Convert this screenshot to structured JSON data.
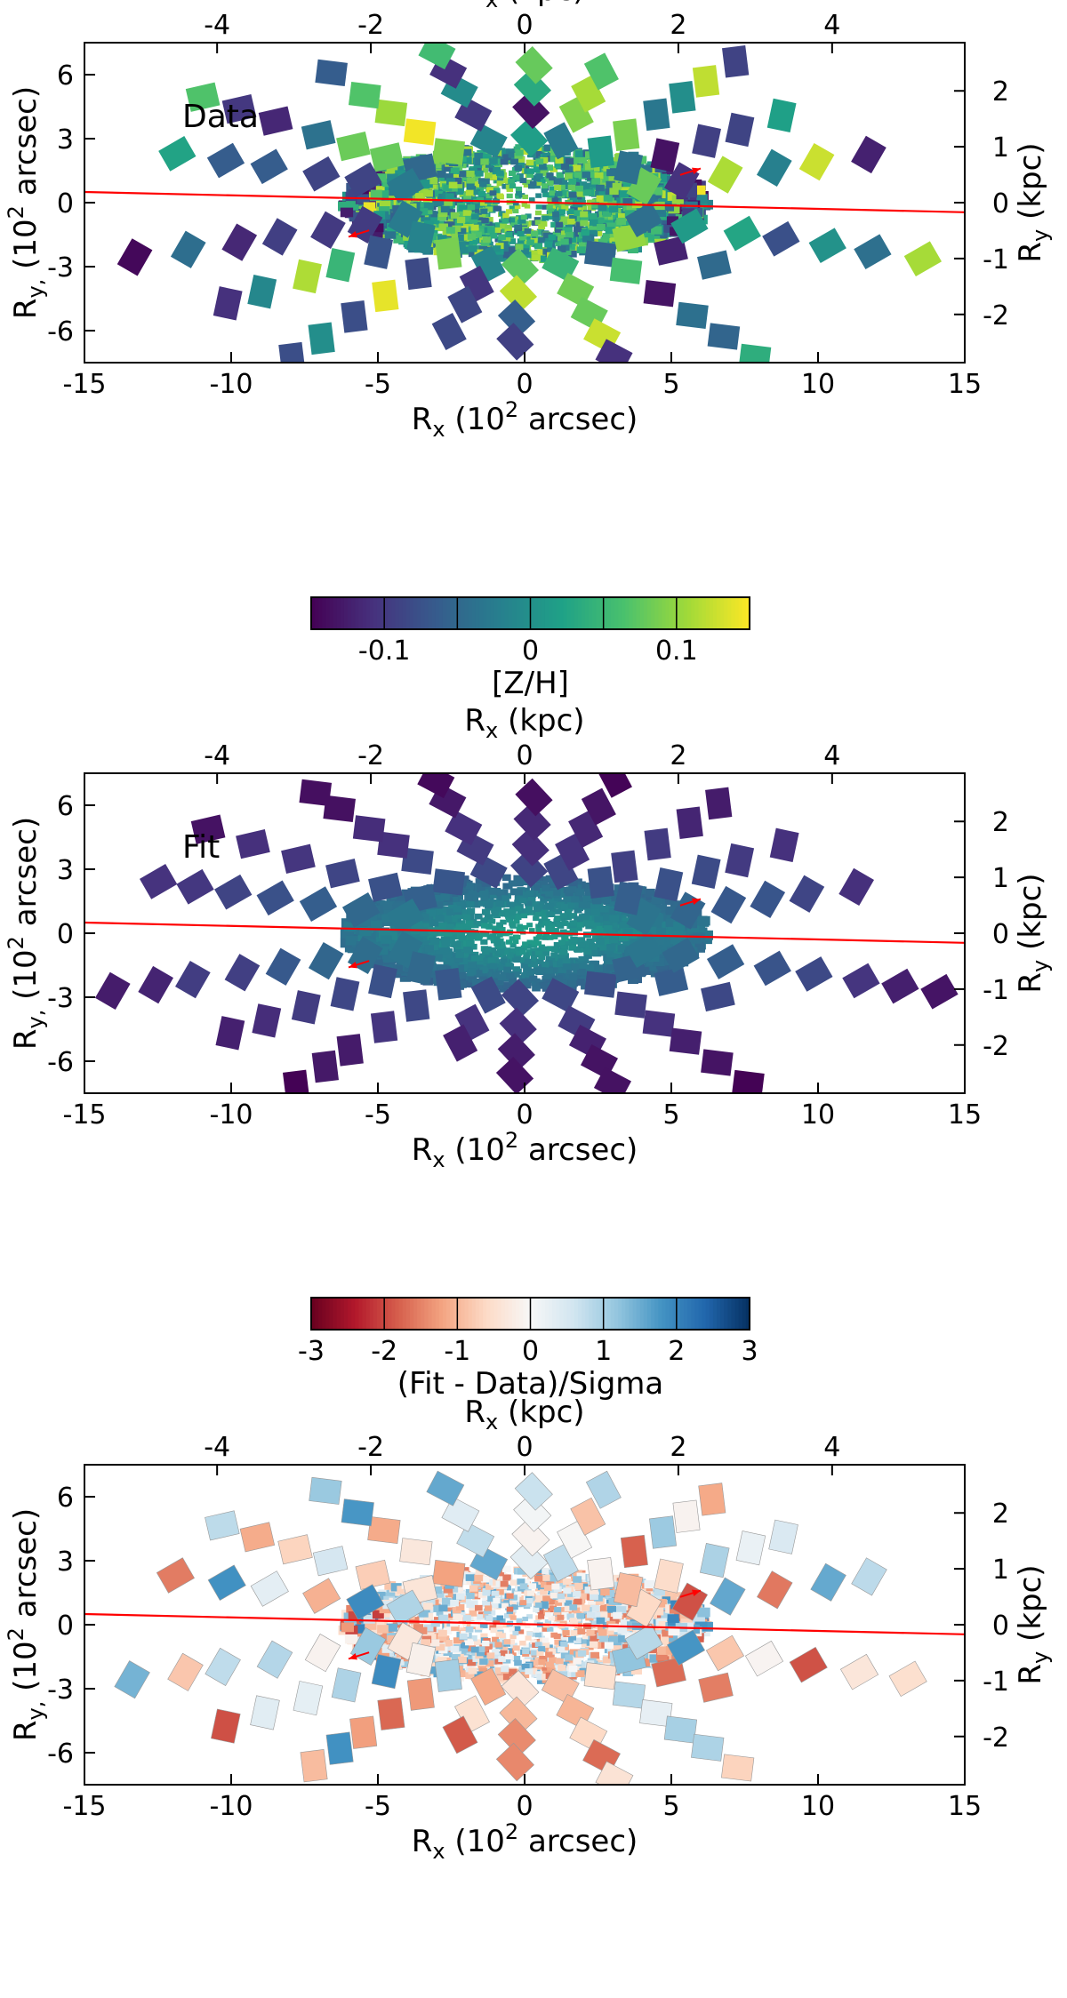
{
  "chart_data": [
    {
      "type": "heatmap",
      "title": "Data",
      "xlabel_bottom_base": "R",
      "xlabel_bottom_sub": "x",
      "xlabel_bottom_unit": " (10",
      "xlabel_bottom_exp": "2",
      "xlabel_bottom_tail": " arcsec)",
      "xlabel_top_base": "R",
      "xlabel_top_sub": "x",
      "xlabel_top_tail": " (kpc)",
      "ylabel_left_base": "R",
      "ylabel_left_sub": "y,",
      "ylabel_left_unit": " (10",
      "ylabel_left_exp": "2",
      "ylabel_left_tail": " arcsec)",
      "ylabel_right_base": "R",
      "ylabel_right_sub": "y",
      "ylabel_right_tail": " (kpc)",
      "xlim": [
        -15,
        15
      ],
      "ylim": [
        -7.5,
        7.5
      ],
      "x_ticks": [
        "-15",
        "-10",
        "-5",
        "0",
        "5",
        "10",
        "15"
      ],
      "y_ticks": [
        "-6",
        "-3",
        "0",
        "3",
        "6"
      ],
      "x_top_ticks": [
        "-4",
        "-2",
        "0",
        "2",
        "4"
      ],
      "y_right_ticks": [
        "-2",
        "-1",
        "0",
        "1",
        "2"
      ],
      "colorbar": {
        "label": "[Z/H]",
        "range": [
          -0.15,
          0.15
        ],
        "ticks": [
          "-0.1",
          "0",
          "0.1"
        ],
        "colormap": "viridis"
      },
      "map_style": "viridis"
    },
    {
      "type": "heatmap",
      "title": "Fit",
      "xlabel_bottom_base": "R",
      "xlabel_bottom_sub": "x",
      "xlabel_bottom_unit": " (10",
      "xlabel_bottom_exp": "2",
      "xlabel_bottom_tail": " arcsec)",
      "xlabel_top_base": "R",
      "xlabel_top_sub": "x",
      "xlabel_top_tail": " (kpc)",
      "ylabel_left_base": "R",
      "ylabel_left_sub": "y,",
      "ylabel_left_unit": " (10",
      "ylabel_left_exp": "2",
      "ylabel_left_tail": " arcsec)",
      "ylabel_right_base": "R",
      "ylabel_right_sub": "y",
      "ylabel_right_tail": " (kpc)",
      "xlim": [
        -15,
        15
      ],
      "ylim": [
        -7.5,
        7.5
      ],
      "x_ticks": [
        "-15",
        "-10",
        "-5",
        "0",
        "5",
        "10",
        "15"
      ],
      "y_ticks": [
        "-6",
        "-3",
        "0",
        "3",
        "6"
      ],
      "x_top_ticks": [
        "-4",
        "-2",
        "0",
        "2",
        "4"
      ],
      "y_right_ticks": [
        "-2",
        "-1",
        "0",
        "1",
        "2"
      ],
      "colorbar": {
        "label": "(Fit - Data)/Sigma",
        "range": [
          -3,
          3
        ],
        "ticks": [
          "-3",
          "-2",
          "-1",
          "0",
          "1",
          "2",
          "3"
        ],
        "colormap": "RdBu"
      },
      "map_style": "fit"
    },
    {
      "type": "heatmap",
      "title": "",
      "xlabel_bottom_base": "R",
      "xlabel_bottom_sub": "x",
      "xlabel_bottom_unit": " (10",
      "xlabel_bottom_exp": "2",
      "xlabel_bottom_tail": " arcsec)",
      "xlabel_top_base": "R",
      "xlabel_top_sub": "x",
      "xlabel_top_tail": " (kpc)",
      "ylabel_left_base": "R",
      "ylabel_left_sub": "y,",
      "ylabel_left_unit": " (10",
      "ylabel_left_exp": "2",
      "ylabel_left_tail": " arcsec)",
      "ylabel_right_base": "R",
      "ylabel_right_sub": "y",
      "ylabel_right_tail": " (kpc)",
      "xlim": [
        -15,
        15
      ],
      "ylim": [
        -7.5,
        7.5
      ],
      "x_ticks": [
        "-15",
        "-10",
        "-5",
        "0",
        "5",
        "10",
        "15"
      ],
      "y_ticks": [
        "-6",
        "-3",
        "0",
        "3",
        "6"
      ],
      "x_top_ticks": [
        "-4",
        "-2",
        "0",
        "2",
        "4"
      ],
      "y_right_ticks": [
        "-2",
        "-1",
        "0",
        "1",
        "2"
      ],
      "map_style": "residual"
    }
  ],
  "major_axis_line": {
    "x": [
      -15,
      15
    ],
    "y": [
      0.5,
      -0.45
    ],
    "color": "#ff0000"
  },
  "kinematic_arrows": [
    {
      "from": [
        5.3,
        1.3
      ],
      "to": [
        6.0,
        1.6
      ],
      "color": "#ff0000"
    },
    {
      "from": [
        -5.3,
        -1.3
      ],
      "to": [
        -6.0,
        -1.6
      ],
      "color": "#ff0000"
    }
  ],
  "colors": {
    "viridis": [
      "#440154",
      "#46327e",
      "#365c8d",
      "#277f8e",
      "#1fa187",
      "#4ac16d",
      "#a0da39",
      "#fde725"
    ],
    "rdbu": [
      "#67001f",
      "#b2182b",
      "#d6604d",
      "#f4a582",
      "#fddbc7",
      "#f7f7f7",
      "#d1e5f0",
      "#92c5de",
      "#4393c3",
      "#2166ac",
      "#053061"
    ],
    "line": "#ff0000"
  }
}
